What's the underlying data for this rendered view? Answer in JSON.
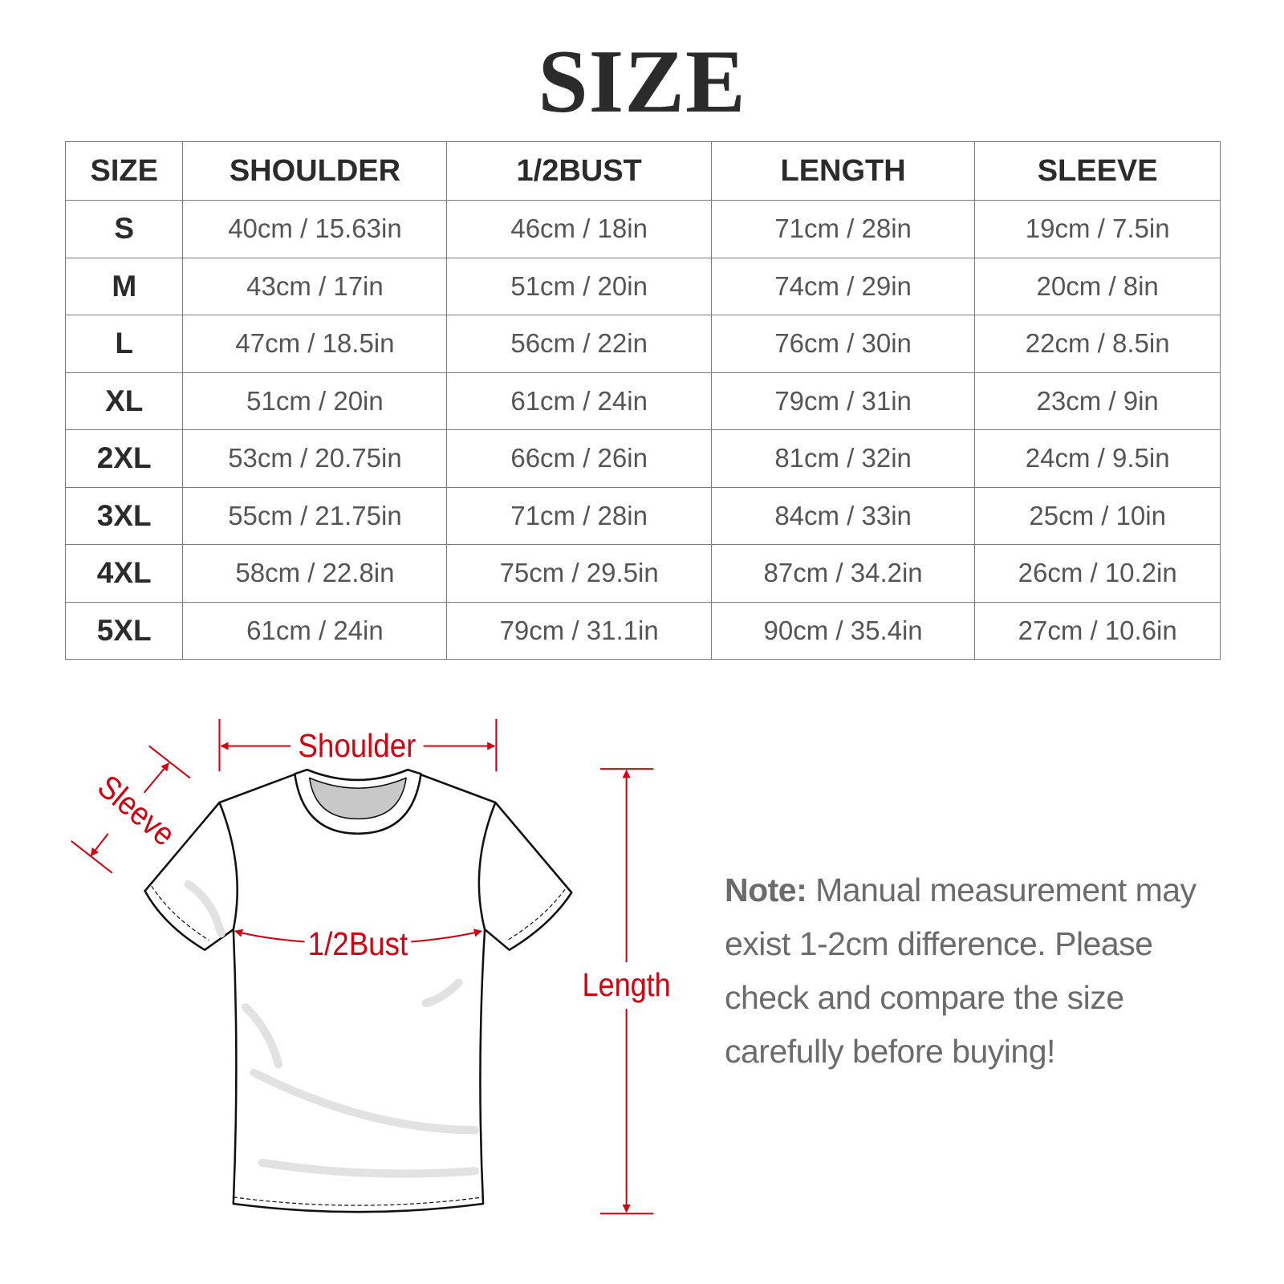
{
  "title": "SIZE",
  "table": {
    "headers": [
      "SIZE",
      "SHOULDER",
      "1/2BUST",
      "LENGTH",
      "SLEEVE"
    ],
    "rows": [
      [
        "S",
        "40cm / 15.63in",
        "46cm / 18in",
        "71cm / 28in",
        "19cm / 7.5in"
      ],
      [
        "M",
        "43cm / 17in",
        "51cm / 20in",
        "74cm / 29in",
        "20cm / 8in"
      ],
      [
        "L",
        "47cm / 18.5in",
        "56cm / 22in",
        "76cm / 30in",
        "22cm / 8.5in"
      ],
      [
        "XL",
        "51cm / 20in",
        "61cm / 24in",
        "79cm / 31in",
        "23cm / 9in"
      ],
      [
        "2XL",
        "53cm / 20.75in",
        "66cm / 26in",
        "81cm / 32in",
        "24cm / 9.5in"
      ],
      [
        "3XL",
        "55cm / 21.75in",
        "71cm / 28in",
        "84cm / 33in",
        "25cm / 10in"
      ],
      [
        "4XL",
        "58cm / 22.8in",
        "75cm / 29.5in",
        "87cm / 34.2in",
        "26cm / 10.2in"
      ],
      [
        "5XL",
        "61cm / 24in",
        "79cm / 31.1in",
        "90cm / 35.4in",
        "27cm / 10.6in"
      ]
    ]
  },
  "diagram": {
    "shoulder_label": "Shoulder",
    "sleeve_label": "Sleeve",
    "bust_label": "1/2Bust",
    "length_label": "Length",
    "accent_color": "#d7000f"
  },
  "note": {
    "label": "Note:",
    "text": " Manual measurement may exist 1-2cm difference. Please check and compare the size carefully before buying!"
  }
}
